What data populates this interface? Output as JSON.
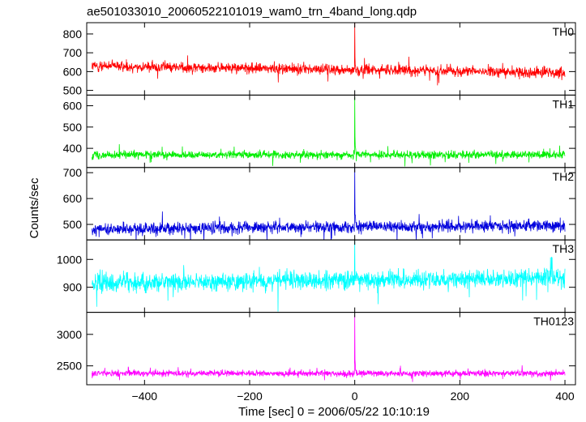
{
  "title": "ae501033010_20060522101019_wam0_trn_4band_long.qdp",
  "ylabel": "Counts/sec",
  "xlabel": "Time [sec] 0 = 2006/05/22 10:10:19",
  "chart_data": {
    "type": "line",
    "x_range": [
      -510,
      420
    ],
    "x_ticks": [
      -400,
      -200,
      0,
      200,
      400
    ],
    "x_ticks_labels": [
      "−400",
      "−200",
      "0",
      "200",
      "400"
    ],
    "bin_width_sec": 0.5,
    "grid": false,
    "panels": [
      {
        "name": "TH0",
        "color": "#ff0000",
        "ylim": [
          475,
          860
        ],
        "yticks": [
          500,
          600,
          700,
          800
        ],
        "baseline": 610,
        "noise": 26,
        "trend": -0.04,
        "spike": 860
      },
      {
        "name": "TH1",
        "color": "#00ee00",
        "ylim": [
          310,
          650
        ],
        "yticks": [
          400,
          500,
          600
        ],
        "baseline": 370,
        "noise": 17,
        "trend": 0,
        "spike": 640
      },
      {
        "name": "TH2",
        "color": "#0000dd",
        "ylim": [
          440,
          720
        ],
        "yticks": [
          500,
          600,
          700
        ],
        "baseline": 490,
        "noise": 22,
        "trend": 0.015,
        "spike": 720
      },
      {
        "name": "TH3",
        "color": "#00ffff",
        "ylim": [
          810,
          1070
        ],
        "yticks": [
          900,
          1000
        ],
        "baseline": 925,
        "noise": 30,
        "trend": 0.02,
        "spike": 1070
      },
      {
        "name": "TH0123",
        "color": "#ff00ff",
        "ylim": [
          2200,
          3350
        ],
        "yticks": [
          2500,
          3000
        ],
        "baseline": 2380,
        "noise": 45,
        "trend": 0,
        "spike": 3300
      }
    ]
  }
}
